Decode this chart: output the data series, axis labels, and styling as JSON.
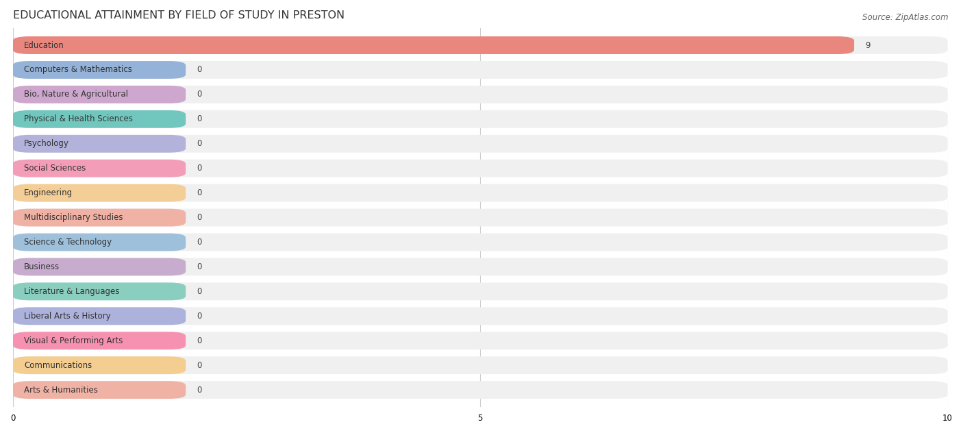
{
  "title": "EDUCATIONAL ATTAINMENT BY FIELD OF STUDY IN PRESTON",
  "source": "Source: ZipAtlas.com",
  "categories": [
    "Education",
    "Computers & Mathematics",
    "Bio, Nature & Agricultural",
    "Physical & Health Sciences",
    "Psychology",
    "Social Sciences",
    "Engineering",
    "Multidisciplinary Studies",
    "Science & Technology",
    "Business",
    "Literature & Languages",
    "Liberal Arts & History",
    "Visual & Performing Arts",
    "Communications",
    "Arts & Humanities"
  ],
  "values": [
    9,
    0,
    0,
    0,
    0,
    0,
    0,
    0,
    0,
    0,
    0,
    0,
    0,
    0,
    0
  ],
  "bar_colors": [
    "#E8756A",
    "#85A9D4",
    "#C89BC8",
    "#5BBFB5",
    "#A8A8D8",
    "#F48FAE",
    "#F5C888",
    "#F0A898",
    "#90B8D8",
    "#C0A0C8",
    "#78C8B8",
    "#A0A8D8",
    "#F880A8",
    "#F5C880",
    "#F0A898"
  ],
  "background_color": "#ffffff",
  "xlim": [
    0,
    10
  ],
  "xticks": [
    0,
    5,
    10
  ],
  "title_fontsize": 11.5,
  "label_fontsize": 8.5,
  "value_fontsize": 8.5,
  "source_fontsize": 8.5,
  "bar_height": 0.72,
  "row_bg_color": "#f0f0f0",
  "grid_color": "#cccccc",
  "label_bar_width": 1.85
}
